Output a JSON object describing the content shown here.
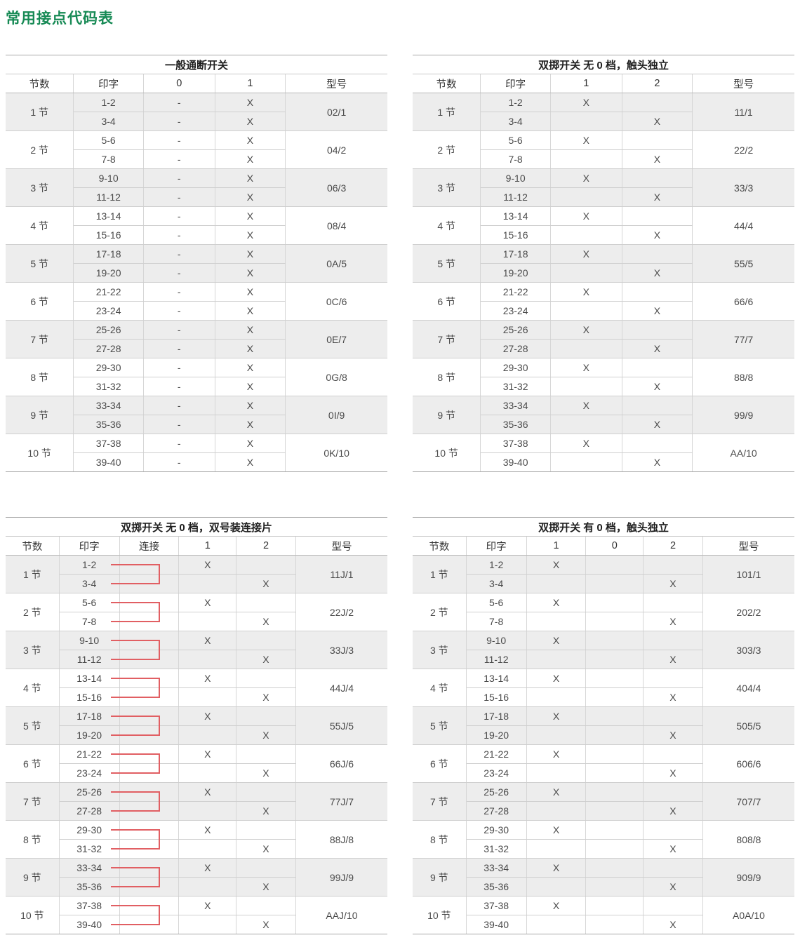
{
  "page_title": "常用接点代码表",
  "colors": {
    "title_green": "#178a55",
    "connector_red": "#e15f63",
    "row_shade": "#ededed",
    "grid_line": "#d6d6d6",
    "outer_line": "#a8a8a8",
    "text": "#4a4a4a"
  },
  "tables": [
    {
      "title": "一般通断开关",
      "columns": [
        "节数",
        "印字",
        "0",
        "1",
        "型号"
      ],
      "has_connector": false,
      "pair_marks": [
        [
          "-",
          "X"
        ],
        [
          "-",
          "X"
        ]
      ],
      "groups": [
        {
          "label": "1 节",
          "prints": [
            "1-2",
            "3-4"
          ],
          "model": "02/1"
        },
        {
          "label": "2 节",
          "prints": [
            "5-6",
            "7-8"
          ],
          "model": "04/2"
        },
        {
          "label": "3 节",
          "prints": [
            "9-10",
            "11-12"
          ],
          "model": "06/3"
        },
        {
          "label": "4 节",
          "prints": [
            "13-14",
            "15-16"
          ],
          "model": "08/4"
        },
        {
          "label": "5 节",
          "prints": [
            "17-18",
            "19-20"
          ],
          "model": "0A/5"
        },
        {
          "label": "6 节",
          "prints": [
            "21-22",
            "23-24"
          ],
          "model": "0C/6"
        },
        {
          "label": "7 节",
          "prints": [
            "25-26",
            "27-28"
          ],
          "model": "0E/7"
        },
        {
          "label": "8 节",
          "prints": [
            "29-30",
            "31-32"
          ],
          "model": "0G/8"
        },
        {
          "label": "9 节",
          "prints": [
            "33-34",
            "35-36"
          ],
          "model": "0I/9"
        },
        {
          "label": "10 节",
          "prints": [
            "37-38",
            "39-40"
          ],
          "model": "0K/10"
        }
      ]
    },
    {
      "title": "双掷开关 无 0 档，触头独立",
      "columns": [
        "节数",
        "印字",
        "1",
        "2",
        "型号"
      ],
      "has_connector": false,
      "pair_marks": [
        [
          "X",
          ""
        ],
        [
          "",
          "X"
        ]
      ],
      "groups": [
        {
          "label": "1 节",
          "prints": [
            "1-2",
            "3-4"
          ],
          "model": "11/1"
        },
        {
          "label": "2 节",
          "prints": [
            "5-6",
            "7-8"
          ],
          "model": "22/2"
        },
        {
          "label": "3 节",
          "prints": [
            "9-10",
            "11-12"
          ],
          "model": "33/3"
        },
        {
          "label": "4 节",
          "prints": [
            "13-14",
            "15-16"
          ],
          "model": "44/4"
        },
        {
          "label": "5 节",
          "prints": [
            "17-18",
            "19-20"
          ],
          "model": "55/5"
        },
        {
          "label": "6 节",
          "prints": [
            "21-22",
            "23-24"
          ],
          "model": "66/6"
        },
        {
          "label": "7 节",
          "prints": [
            "25-26",
            "27-28"
          ],
          "model": "77/7"
        },
        {
          "label": "8 节",
          "prints": [
            "29-30",
            "31-32"
          ],
          "model": "88/8"
        },
        {
          "label": "9 节",
          "prints": [
            "33-34",
            "35-36"
          ],
          "model": "99/9"
        },
        {
          "label": "10 节",
          "prints": [
            "37-38",
            "39-40"
          ],
          "model": "AA/10"
        }
      ]
    },
    {
      "title": "双掷开关 无 0 档，双号装连接片",
      "columns": [
        "节数",
        "印字",
        "连接",
        "1",
        "2",
        "型号"
      ],
      "has_connector": true,
      "pair_marks": [
        [
          "X",
          ""
        ],
        [
          "",
          "X"
        ]
      ],
      "groups": [
        {
          "label": "1 节",
          "prints": [
            "1-2",
            "3-4"
          ],
          "model": "11J/1"
        },
        {
          "label": "2 节",
          "prints": [
            "5-6",
            "7-8"
          ],
          "model": "22J/2"
        },
        {
          "label": "3 节",
          "prints": [
            "9-10",
            "11-12"
          ],
          "model": "33J/3"
        },
        {
          "label": "4 节",
          "prints": [
            "13-14",
            "15-16"
          ],
          "model": "44J/4"
        },
        {
          "label": "5 节",
          "prints": [
            "17-18",
            "19-20"
          ],
          "model": "55J/5"
        },
        {
          "label": "6 节",
          "prints": [
            "21-22",
            "23-24"
          ],
          "model": "66J/6"
        },
        {
          "label": "7 节",
          "prints": [
            "25-26",
            "27-28"
          ],
          "model": "77J/7"
        },
        {
          "label": "8 节",
          "prints": [
            "29-30",
            "31-32"
          ],
          "model": "88J/8"
        },
        {
          "label": "9 节",
          "prints": [
            "33-34",
            "35-36"
          ],
          "model": "99J/9"
        },
        {
          "label": "10 节",
          "prints": [
            "37-38",
            "39-40"
          ],
          "model": "AAJ/10"
        }
      ]
    },
    {
      "title": "双掷开关 有 0 档，触头独立",
      "columns": [
        "节数",
        "印字",
        "1",
        "0",
        "2",
        "型号"
      ],
      "has_connector": false,
      "pair_marks": [
        [
          "X",
          "",
          ""
        ],
        [
          "",
          "",
          "X"
        ]
      ],
      "groups": [
        {
          "label": "1 节",
          "prints": [
            "1-2",
            "3-4"
          ],
          "model": "101/1"
        },
        {
          "label": "2 节",
          "prints": [
            "5-6",
            "7-8"
          ],
          "model": "202/2"
        },
        {
          "label": "3 节",
          "prints": [
            "9-10",
            "11-12"
          ],
          "model": "303/3"
        },
        {
          "label": "4 节",
          "prints": [
            "13-14",
            "15-16"
          ],
          "model": "404/4"
        },
        {
          "label": "5 节",
          "prints": [
            "17-18",
            "19-20"
          ],
          "model": "505/5"
        },
        {
          "label": "6 节",
          "prints": [
            "21-22",
            "23-24"
          ],
          "model": "606/6"
        },
        {
          "label": "7 节",
          "prints": [
            "25-26",
            "27-28"
          ],
          "model": "707/7"
        },
        {
          "label": "8 节",
          "prints": [
            "29-30",
            "31-32"
          ],
          "model": "808/8"
        },
        {
          "label": "9 节",
          "prints": [
            "33-34",
            "35-36"
          ],
          "model": "909/9"
        },
        {
          "label": "10 节",
          "prints": [
            "37-38",
            "39-40"
          ],
          "model": "A0A/10"
        }
      ]
    }
  ]
}
